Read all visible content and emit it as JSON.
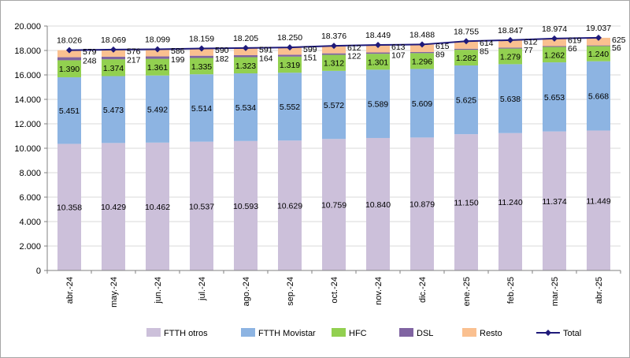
{
  "chart_data": {
    "type": "bar",
    "stacked": true,
    "categories": [
      "abr.-24",
      "may.-24",
      "jun.-24",
      "jul.-24",
      "ago.-24",
      "sep.-24",
      "oct.-24",
      "nov.-24",
      "dic.-24",
      "ene.-25",
      "feb.-25",
      "mar.-25",
      "abr.-25"
    ],
    "ylim": [
      0,
      20000
    ],
    "yticks": [
      "0",
      "2.000",
      "4.000",
      "6.000",
      "8.000",
      "10.000",
      "12.000",
      "14.000",
      "16.000",
      "18.000",
      "20.000"
    ],
    "grid": "horizontal",
    "legend_position": "bottom",
    "series": [
      {
        "name": "FTTH otros",
        "color": "#ccc0da",
        "values": [
          10358,
          10429,
          10462,
          10537,
          10593,
          10629,
          10759,
          10840,
          10879,
          11150,
          11240,
          11374,
          11449
        ],
        "labels": [
          "10.358",
          "10.429",
          "10.462",
          "10.537",
          "10.593",
          "10.629",
          "10.759",
          "10.840",
          "10.879",
          "11.150",
          "11.240",
          "11.374",
          "11.449"
        ]
      },
      {
        "name": "FTTH Movistar",
        "color": "#8db4e2",
        "values": [
          5451,
          5473,
          5492,
          5514,
          5534,
          5552,
          5572,
          5589,
          5609,
          5625,
          5638,
          5653,
          5668
        ],
        "labels": [
          "5.451",
          "5.473",
          "5.492",
          "5.514",
          "5.534",
          "5.552",
          "5.572",
          "5.589",
          "5.609",
          "5.625",
          "5.638",
          "5.653",
          "5.668"
        ]
      },
      {
        "name": "HFC",
        "color": "#92d050",
        "values": [
          1390,
          1374,
          1361,
          1335,
          1323,
          1319,
          1312,
          1301,
          1296,
          1282,
          1279,
          1262,
          1240
        ],
        "labels": [
          "1.390",
          "1.374",
          "1.361",
          "1.335",
          "1.323",
          "1.319",
          "1.312",
          "1.301",
          "1.296",
          "1.282",
          "1.279",
          "1.262",
          "1.240"
        ]
      },
      {
        "name": "DSL",
        "color": "#8064a2",
        "values": [
          248,
          217,
          199,
          182,
          164,
          151,
          122,
          107,
          89,
          85,
          77,
          66,
          56
        ],
        "labels": [
          "248",
          "217",
          "199",
          "182",
          "164",
          "151",
          "122",
          "107",
          "89",
          "85",
          "77",
          "66",
          "56"
        ]
      },
      {
        "name": "Resto",
        "color": "#fac090",
        "values": [
          579,
          576,
          586,
          590,
          591,
          599,
          612,
          613,
          615,
          614,
          612,
          619,
          625
        ],
        "labels": [
          "579",
          "576",
          "586",
          "590",
          "591",
          "599",
          "612",
          "613",
          "615",
          "614",
          "612",
          "619",
          "625"
        ]
      }
    ],
    "total": {
      "name": "Total",
      "color": "#1f1a7a",
      "values": [
        18026,
        18069,
        18099,
        18159,
        18205,
        18250,
        18376,
        18449,
        18488,
        18755,
        18847,
        18974,
        19037
      ],
      "labels": [
        "18.026",
        "18.069",
        "18.099",
        "18.159",
        "18.205",
        "18.250",
        "18.376",
        "18.449",
        "18.488",
        "18.755",
        "18.847",
        "18.974",
        "19.037"
      ]
    }
  }
}
